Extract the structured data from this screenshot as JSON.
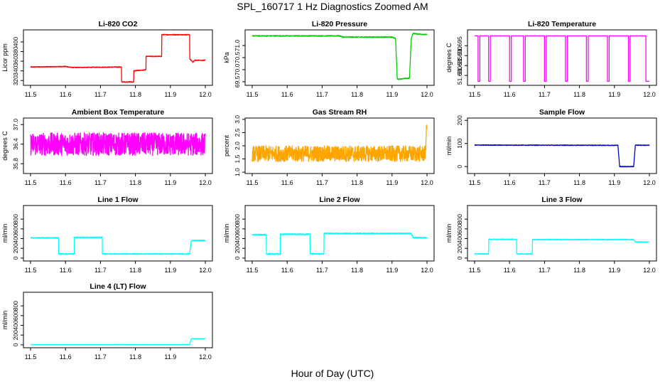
{
  "figure": {
    "title": "SPL_160717  1 Hz Diagnostics Zoomed AM",
    "xlabel": "Hour of Day (UTC)"
  },
  "chart_data": [
    {
      "type": "line",
      "title": "Li-820 CO2",
      "ylabel": "Licor ppm",
      "color": "#ff0000",
      "xlim": [
        11.5,
        12.0
      ],
      "ylim": [
        310,
        425
      ],
      "xticks": [
        "11.5",
        "11.6",
        "11.7",
        "11.8",
        "11.9",
        "12.0"
      ],
      "yticks": [
        {
          "v": 320,
          "label": "320"
        },
        {
          "v": 340,
          "label": "340"
        },
        {
          "v": 360,
          "label": "360"
        },
        {
          "v": 380,
          "label": "380"
        },
        {
          "v": 400,
          "label": "400"
        }
      ],
      "noise": 0.8,
      "x": [
        11.5,
        11.6,
        11.62,
        11.76,
        11.76,
        11.795,
        11.795,
        11.83,
        11.83,
        11.875,
        11.875,
        11.955,
        11.955,
        11.965,
        11.97,
        12.0
      ],
      "y": [
        348,
        349,
        347,
        348,
        317,
        317,
        340,
        342,
        370,
        370,
        415,
        415,
        365,
        358,
        362,
        362
      ]
    },
    {
      "type": "line",
      "title": "Li-820 Pressure",
      "ylabel": "kPa",
      "color": "#00cc00",
      "xlim": [
        11.5,
        12.0
      ],
      "ylim": [
        69.35,
        71.65
      ],
      "xticks": [
        "11.5",
        "11.6",
        "11.7",
        "11.8",
        "11.9",
        "12.0"
      ],
      "yticks": [
        {
          "v": 69.5,
          "label": "69.5"
        },
        {
          "v": 70.0,
          "label": "70.0"
        },
        {
          "v": 70.5,
          "label": "70.5"
        },
        {
          "v": 71.0,
          "label": "71.0"
        }
      ],
      "noise": 0.02,
      "x": [
        11.5,
        11.75,
        11.76,
        11.9,
        11.91,
        11.915,
        11.95,
        11.955,
        11.96,
        12.0
      ],
      "y": [
        71.4,
        71.4,
        71.35,
        71.35,
        71.3,
        69.6,
        69.65,
        71.3,
        71.5,
        71.45
      ]
    },
    {
      "type": "line",
      "title": "Li-820 Temperature",
      "ylabel": "degrees C",
      "color": "#ff00ff",
      "xlim": [
        11.5,
        12.0
      ],
      "ylim": [
        51.675,
        51.703
      ],
      "xticks": [
        "11.5",
        "11.6",
        "11.7",
        "11.8",
        "11.9",
        "12.0"
      ],
      "yticks": [
        {
          "v": 51.68,
          "label": "51.680"
        },
        {
          "v": 51.685,
          "label": "51.685"
        },
        {
          "v": 51.69,
          "label": "51.690"
        },
        {
          "v": 51.695,
          "label": "51.695"
        }
      ],
      "noise": 0,
      "x": [
        11.5,
        11.51,
        11.51,
        11.515,
        11.515,
        11.54,
        11.54,
        11.545,
        11.545,
        11.6,
        11.6,
        11.605,
        11.605,
        11.64,
        11.64,
        11.645,
        11.645,
        11.7,
        11.7,
        11.705,
        11.705,
        11.76,
        11.76,
        11.765,
        11.765,
        11.82,
        11.82,
        11.825,
        11.825,
        11.88,
        11.88,
        11.885,
        11.885,
        11.94,
        11.94,
        11.945,
        11.945,
        11.99,
        11.99,
        12.0
      ],
      "y": [
        51.7,
        51.7,
        51.677,
        51.677,
        51.7,
        51.7,
        51.677,
        51.677,
        51.7,
        51.7,
        51.677,
        51.677,
        51.7,
        51.7,
        51.677,
        51.677,
        51.7,
        51.7,
        51.677,
        51.677,
        51.7,
        51.7,
        51.677,
        51.677,
        51.7,
        51.7,
        51.677,
        51.677,
        51.7,
        51.7,
        51.677,
        51.677,
        51.7,
        51.7,
        51.677,
        51.677,
        51.7,
        51.7,
        51.677,
        51.677
      ]
    },
    {
      "type": "line",
      "title": "Ambient Box Temperature",
      "ylabel": "degrees C",
      "color": "#ff00ff",
      "xlim": [
        11.5,
        12.0
      ],
      "ylim": [
        35.5,
        37.2
      ],
      "xticks": [
        "11.5",
        "11.6",
        "11.7",
        "11.8",
        "11.9",
        "12.0"
      ],
      "yticks": [
        {
          "v": 35.8,
          "label": "35.8"
        },
        {
          "v": 36.4,
          "label": "36.4"
        },
        {
          "v": 37.0,
          "label": "37.0"
        }
      ],
      "noise": 0.35,
      "x": [
        11.5,
        12.0
      ],
      "y": [
        36.4,
        36.4
      ]
    },
    {
      "type": "line",
      "title": "Gas Stream RH",
      "ylabel": "percent",
      "color": "#ffa500",
      "xlim": [
        11.5,
        12.0
      ],
      "ylim": [
        0.95,
        3.05
      ],
      "xticks": [
        "11.5",
        "11.6",
        "11.7",
        "11.8",
        "11.9",
        "12.0"
      ],
      "yticks": [
        {
          "v": 1.0,
          "label": "1.0"
        },
        {
          "v": 1.5,
          "label": "1.5"
        },
        {
          "v": 2.0,
          "label": "2.0"
        },
        {
          "v": 2.5,
          "label": "2.5"
        },
        {
          "v": 3.0,
          "label": "3.0"
        }
      ],
      "noise": 0.3,
      "x": [
        11.5,
        11.995,
        12.0
      ],
      "y": [
        1.7,
        1.7,
        2.9
      ]
    },
    {
      "type": "line",
      "title": "Sample Flow",
      "ylabel": "ml/min",
      "color": "#0000cc",
      "xlim": [
        11.5,
        12.0
      ],
      "ylim": [
        -30,
        210
      ],
      "xticks": [
        "11.5",
        "11.6",
        "11.7",
        "11.8",
        "11.9",
        "12.0"
      ],
      "yticks": [
        {
          "v": 0,
          "label": "0"
        },
        {
          "v": 100,
          "label": "100"
        },
        {
          "v": 200,
          "label": "200"
        }
      ],
      "noise": 1.5,
      "x": [
        11.5,
        11.91,
        11.915,
        11.955,
        11.96,
        12.0
      ],
      "y": [
        93,
        92,
        0,
        0,
        93,
        92
      ]
    },
    {
      "type": "line",
      "title": "Line 1 Flow",
      "ylabel": "ml/min",
      "color": "#00ffff",
      "xlim": [
        11.5,
        12.0
      ],
      "ylim": [
        -60,
        1080
      ],
      "xticks": [
        "11.5",
        "11.6",
        "11.7",
        "11.8",
        "11.9",
        "12.0"
      ],
      "yticks": [
        {
          "v": 0,
          "label": "0"
        },
        {
          "v": 200,
          "label": "200"
        },
        {
          "v": 400,
          "label": "400"
        },
        {
          "v": 600,
          "label": "600"
        },
        {
          "v": 800,
          "label": "800"
        }
      ],
      "noise": 10,
      "x": [
        11.5,
        11.58,
        11.58,
        11.625,
        11.625,
        11.705,
        11.705,
        11.955,
        11.96,
        12.0
      ],
      "y": [
        415,
        415,
        85,
        85,
        425,
        425,
        85,
        85,
        360,
        360
      ]
    },
    {
      "type": "line",
      "title": "Line 2 Flow",
      "ylabel": "ml/min",
      "color": "#00ffff",
      "xlim": [
        11.5,
        12.0
      ],
      "ylim": [
        -60,
        1080
      ],
      "xticks": [
        "11.5",
        "11.6",
        "11.7",
        "11.8",
        "11.9",
        "12.0"
      ],
      "yticks": [
        {
          "v": 0,
          "label": "0"
        },
        {
          "v": 200,
          "label": "200"
        },
        {
          "v": 400,
          "label": "400"
        },
        {
          "v": 600,
          "label": "600"
        },
        {
          "v": 800,
          "label": "800"
        }
      ],
      "noise": 12,
      "x": [
        11.5,
        11.54,
        11.54,
        11.58,
        11.58,
        11.665,
        11.665,
        11.705,
        11.705,
        11.955,
        11.96,
        12.0
      ],
      "y": [
        480,
        480,
        85,
        85,
        490,
        490,
        85,
        85,
        505,
        505,
        420,
        420
      ]
    },
    {
      "type": "line",
      "title": "Line 3 Flow",
      "ylabel": "ml/min",
      "color": "#00ffff",
      "xlim": [
        11.5,
        12.0
      ],
      "ylim": [
        -60,
        1080
      ],
      "xticks": [
        "11.5",
        "11.6",
        "11.7",
        "11.8",
        "11.9",
        "12.0"
      ],
      "yticks": [
        {
          "v": 0,
          "label": "0"
        },
        {
          "v": 200,
          "label": "200"
        },
        {
          "v": 400,
          "label": "400"
        },
        {
          "v": 600,
          "label": "600"
        },
        {
          "v": 800,
          "label": "800"
        }
      ],
      "noise": 8,
      "x": [
        11.5,
        11.54,
        11.54,
        11.62,
        11.62,
        11.665,
        11.665,
        11.955,
        11.96,
        12.0
      ],
      "y": [
        85,
        85,
        385,
        385,
        85,
        85,
        380,
        380,
        330,
        330
      ]
    },
    {
      "type": "line",
      "title": "Line 4 (LT) Flow",
      "ylabel": "ml/min",
      "color": "#00ffff",
      "xlim": [
        11.5,
        12.0
      ],
      "ylim": [
        -60,
        1080
      ],
      "xticks": [
        "11.5",
        "11.6",
        "11.7",
        "11.8",
        "11.9",
        "12.0"
      ],
      "yticks": [
        {
          "v": 0,
          "label": "0"
        },
        {
          "v": 200,
          "label": "200"
        },
        {
          "v": 400,
          "label": "400"
        },
        {
          "v": 600,
          "label": "600"
        },
        {
          "v": 800,
          "label": "800"
        }
      ],
      "noise": 3,
      "x": [
        11.5,
        11.955,
        11.96,
        12.0
      ],
      "y": [
        5,
        5,
        125,
        125
      ]
    }
  ]
}
